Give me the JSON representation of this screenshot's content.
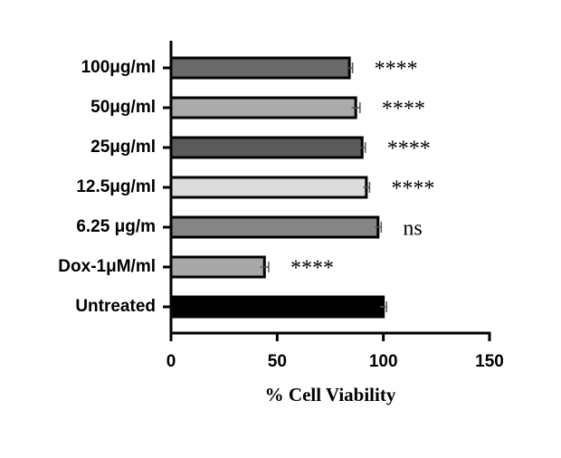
{
  "chart_data": {
    "type": "hbar",
    "x_label": "% Cell Viability",
    "categories": [
      "100μg/ml",
      "50μg/ml",
      "25μg/ml",
      "12.5μg/ml",
      "6.25 μg/m",
      "Dox-1μM/ml",
      "Untreated"
    ],
    "values": [
      84,
      87,
      90,
      92,
      97.5,
      44,
      100
    ],
    "errors": [
      1.5,
      2,
      1.5,
      1.5,
      1.5,
      2,
      1.5
    ],
    "colors": [
      "#6a6a6a",
      "#ababab",
      "#5a5a5a",
      "#dcdcdc",
      "#858585",
      "#a8a8a8",
      "#000000"
    ],
    "annotations": [
      "****",
      "****",
      "****",
      "****",
      "ns",
      "****",
      null
    ],
    "xlim": [
      0,
      150
    ],
    "xticks": [
      0,
      50,
      100,
      150
    ]
  }
}
